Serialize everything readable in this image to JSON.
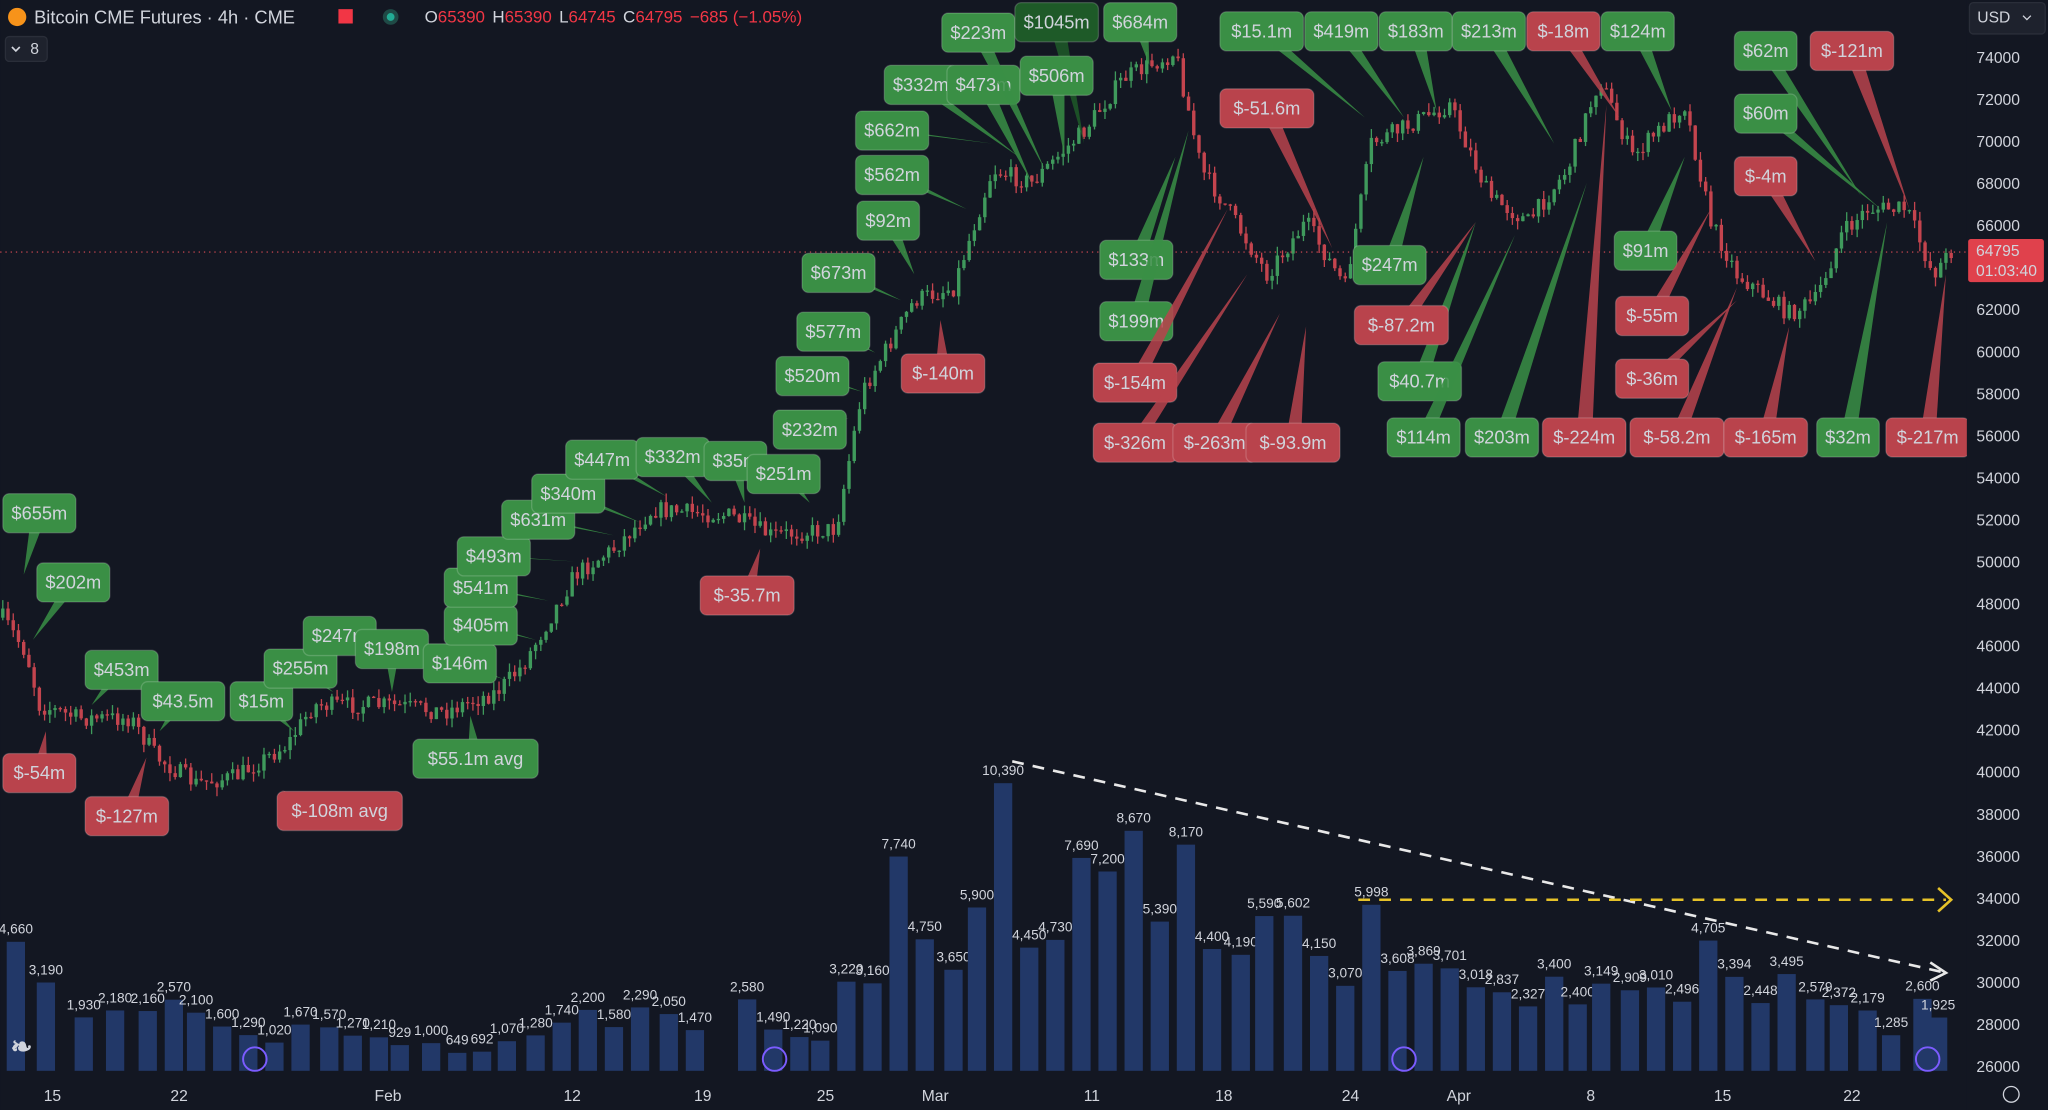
{
  "header": {
    "symbol": "Bitcoin CME Futures · 4h · CME",
    "open_label": "O",
    "open": "65390",
    "high_label": "H",
    "high": "65390",
    "low_label": "L",
    "low": "64745",
    "close_label": "C",
    "close": "64795",
    "change": "−685 (−1.05%)",
    "indicator_count": "8"
  },
  "currency": "USD",
  "price_axis": {
    "ticks": [
      74000,
      72000,
      70000,
      68000,
      66000,
      64000,
      62000,
      60000,
      58000,
      56000,
      54000,
      52000,
      50000,
      48000,
      46000,
      44000,
      42000,
      40000,
      38000,
      36000,
      34000,
      32000,
      30000,
      28000,
      26000
    ],
    "last_price": "64795",
    "countdown": "01:03:40"
  },
  "date_axis": [
    "15",
    "22",
    "Feb",
    "12",
    "19",
    "25",
    "Mar",
    "11",
    "18",
    "24",
    "Apr",
    "8",
    "15",
    "22"
  ],
  "flow_labels": [
    {
      "text": "$655m",
      "color": "#3a8f45"
    },
    {
      "text": "$202m",
      "color": "#3a8f45"
    },
    {
      "text": "$453m",
      "color": "#3a8f45"
    },
    {
      "text": "$43.5m",
      "color": "#3a8f45"
    },
    {
      "text": "$15m",
      "color": "#3a8f45"
    },
    {
      "text": "$255m",
      "color": "#3a8f45"
    },
    {
      "text": "$247m",
      "color": "#3a8f45"
    },
    {
      "text": "$198m",
      "color": "#3a8f45"
    },
    {
      "text": "$146m",
      "color": "#3a8f45"
    },
    {
      "text": "$405m",
      "color": "#3a8f45"
    },
    {
      "text": "$541m",
      "color": "#3a8f45"
    },
    {
      "text": "$493m",
      "color": "#3a8f45"
    },
    {
      "text": "$631m",
      "color": "#3a8f45"
    },
    {
      "text": "$340m",
      "color": "#3a8f45"
    },
    {
      "text": "$447m",
      "color": "#3a8f45"
    },
    {
      "text": "$332m",
      "color": "#3a8f45"
    },
    {
      "text": "$35m",
      "color": "#3a8f45"
    },
    {
      "text": "$251m",
      "color": "#3a8f45"
    },
    {
      "text": "$232m",
      "color": "#3a8f45"
    },
    {
      "text": "$520m",
      "color": "#3a8f45"
    },
    {
      "text": "$577m",
      "color": "#3a8f45"
    },
    {
      "text": "$673m",
      "color": "#3a8f45"
    },
    {
      "text": "$92m",
      "color": "#3a8f45"
    },
    {
      "text": "$562m",
      "color": "#3a8f45"
    },
    {
      "text": "$662m",
      "color": "#3a8f45"
    },
    {
      "text": "$332m",
      "color": "#3a8f45"
    },
    {
      "text": "$473m",
      "color": "#3a8f45"
    },
    {
      "text": "$223m",
      "color": "#3a8f45"
    },
    {
      "text": "$1045m",
      "color": "#1e5a28"
    },
    {
      "text": "$506m",
      "color": "#3a8f45"
    },
    {
      "text": "$684m",
      "color": "#3a8f45"
    },
    {
      "text": "$133m",
      "color": "#3a8f45"
    },
    {
      "text": "$199m",
      "color": "#3a8f45"
    },
    {
      "text": "$15.1m",
      "color": "#3a8f45"
    },
    {
      "text": "$419m",
      "color": "#3a8f45"
    },
    {
      "text": "$183m",
      "color": "#3a8f45"
    },
    {
      "text": "$213m",
      "color": "#3a8f45"
    },
    {
      "text": "$124m",
      "color": "#3a8f45"
    },
    {
      "text": "$62m",
      "color": "#3a8f45"
    },
    {
      "text": "$60m",
      "color": "#3a8f45"
    },
    {
      "text": "$91m",
      "color": "#3a8f45"
    },
    {
      "text": "$247m",
      "color": "#3a8f45"
    },
    {
      "text": "$40.7m",
      "color": "#3a8f45"
    },
    {
      "text": "$114m",
      "color": "#3a8f45"
    },
    {
      "text": "$203m",
      "color": "#3a8f45"
    },
    {
      "text": "$32m",
      "color": "#3a8f45"
    },
    {
      "text": "$55.1m avg",
      "color": "#3a8f45"
    },
    {
      "text": "$-54m",
      "color": "#b9434c"
    },
    {
      "text": "$-127m",
      "color": "#b9434c"
    },
    {
      "text": "$-108m avg",
      "color": "#b9434c"
    },
    {
      "text": "$-35.7m",
      "color": "#b9434c"
    },
    {
      "text": "$-140m",
      "color": "#b9434c"
    },
    {
      "text": "$-51.6m",
      "color": "#b9434c"
    },
    {
      "text": "$-154m",
      "color": "#b9434c"
    },
    {
      "text": "$-326m",
      "color": "#b9434c"
    },
    {
      "text": "$-263m",
      "color": "#b9434c"
    },
    {
      "text": "$-93.9m",
      "color": "#b9434c"
    },
    {
      "text": "$-87.2m",
      "color": "#b9434c"
    },
    {
      "text": "$-18m",
      "color": "#b9434c"
    },
    {
      "text": "$-121m",
      "color": "#b9434c"
    },
    {
      "text": "$-4m",
      "color": "#b9434c"
    },
    {
      "text": "$-55m",
      "color": "#b9434c"
    },
    {
      "text": "$-36m",
      "color": "#b9434c"
    },
    {
      "text": "$-224m",
      "color": "#b9434c"
    },
    {
      "text": "$-58.2m",
      "color": "#b9434c"
    },
    {
      "text": "$-165m",
      "color": "#b9434c"
    },
    {
      "text": "$-217m",
      "color": "#b9434c"
    }
  ],
  "volume": {
    "color": "#223868",
    "bars": [
      {
        "value": 4660,
        "label": "4,660"
      },
      {
        "value": 3190,
        "label": "3,190"
      },
      {
        "value": 1930,
        "label": "1,930"
      },
      {
        "value": 2180,
        "label": "2,180"
      },
      {
        "value": 2160,
        "label": "2,160"
      },
      {
        "value": 2570,
        "label": "2,570"
      },
      {
        "value": 2100,
        "label": "2,100"
      },
      {
        "value": 1600,
        "label": "1,600"
      },
      {
        "value": 1290,
        "label": "1,290"
      },
      {
        "value": 1020,
        "label": "1,020"
      },
      {
        "value": 1670,
        "label": "1,670"
      },
      {
        "value": 1570,
        "label": "1,570"
      },
      {
        "value": 1270,
        "label": "1,270"
      },
      {
        "value": 1210,
        "label": "1,210"
      },
      {
        "value": 929,
        "label": "929"
      },
      {
        "value": 1000,
        "label": "1,000"
      },
      {
        "value": 649,
        "label": "649"
      },
      {
        "value": 692,
        "label": "692"
      },
      {
        "value": 1070,
        "label": "1,070"
      },
      {
        "value": 1280,
        "label": "1,280"
      },
      {
        "value": 1740,
        "label": "1,740"
      },
      {
        "value": 2200,
        "label": "2,200"
      },
      {
        "value": 1580,
        "label": "1,580"
      },
      {
        "value": 2290,
        "label": "2,290"
      },
      {
        "value": 2050,
        "label": "2,050"
      },
      {
        "value": 1470,
        "label": "1,470"
      },
      {
        "value": 2580,
        "label": "2,580"
      },
      {
        "value": 1490,
        "label": "1,490"
      },
      {
        "value": 1220,
        "label": "1,220"
      },
      {
        "value": 1090,
        "label": "1,090"
      },
      {
        "value": 3220,
        "label": "3,220"
      },
      {
        "value": 3160,
        "label": "3,160"
      },
      {
        "value": 7740,
        "label": "7,740"
      },
      {
        "value": 4750,
        "label": "4,750"
      },
      {
        "value": 3650,
        "label": "3,650"
      },
      {
        "value": 5900,
        "label": "5,900"
      },
      {
        "value": 10390,
        "label": "10,390"
      },
      {
        "value": 4450,
        "label": "4,450"
      },
      {
        "value": 4730,
        "label": "4,730"
      },
      {
        "value": 7690,
        "label": "7,690"
      },
      {
        "value": 7200,
        "label": "7,200"
      },
      {
        "value": 8670,
        "label": "8,670"
      },
      {
        "value": 5390,
        "label": "5,390"
      },
      {
        "value": 8170,
        "label": "8,170"
      },
      {
        "value": 4400,
        "label": "4,400"
      },
      {
        "value": 4190,
        "label": "4,190"
      },
      {
        "value": 5590,
        "label": "5,590"
      },
      {
        "value": 5602,
        "label": "5,602"
      },
      {
        "value": 4150,
        "label": "4,150"
      },
      {
        "value": 3070,
        "label": "3,070"
      },
      {
        "value": 5998,
        "label": "5,998"
      },
      {
        "value": 3608,
        "label": "3,608"
      },
      {
        "value": 3869,
        "label": "3,869"
      },
      {
        "value": 3701,
        "label": "3,701"
      },
      {
        "value": 3018,
        "label": "3,018"
      },
      {
        "value": 2837,
        "label": "2,837"
      },
      {
        "value": 2327,
        "label": "2,327"
      },
      {
        "value": 3400,
        "label": "3,400"
      },
      {
        "value": 2400,
        "label": "2,400"
      },
      {
        "value": 3149,
        "label": "3,149"
      },
      {
        "value": 2909,
        "label": "2,909"
      },
      {
        "value": 3010,
        "label": "3,010"
      },
      {
        "value": 2496,
        "label": "2,496"
      },
      {
        "value": 4705,
        "label": "4,705"
      },
      {
        "value": 3394,
        "label": "3,394"
      },
      {
        "value": 2448,
        "label": "2,448"
      },
      {
        "value": 3495,
        "label": "3,495"
      },
      {
        "value": 2579,
        "label": "2,579"
      },
      {
        "value": 2372,
        "label": "2,372"
      },
      {
        "value": 2179,
        "label": "2,179"
      },
      {
        "value": 1285,
        "label": "1,285"
      },
      {
        "value": 2600,
        "label": "2,600"
      },
      {
        "value": 1925,
        "label": "1,925"
      }
    ]
  }
}
